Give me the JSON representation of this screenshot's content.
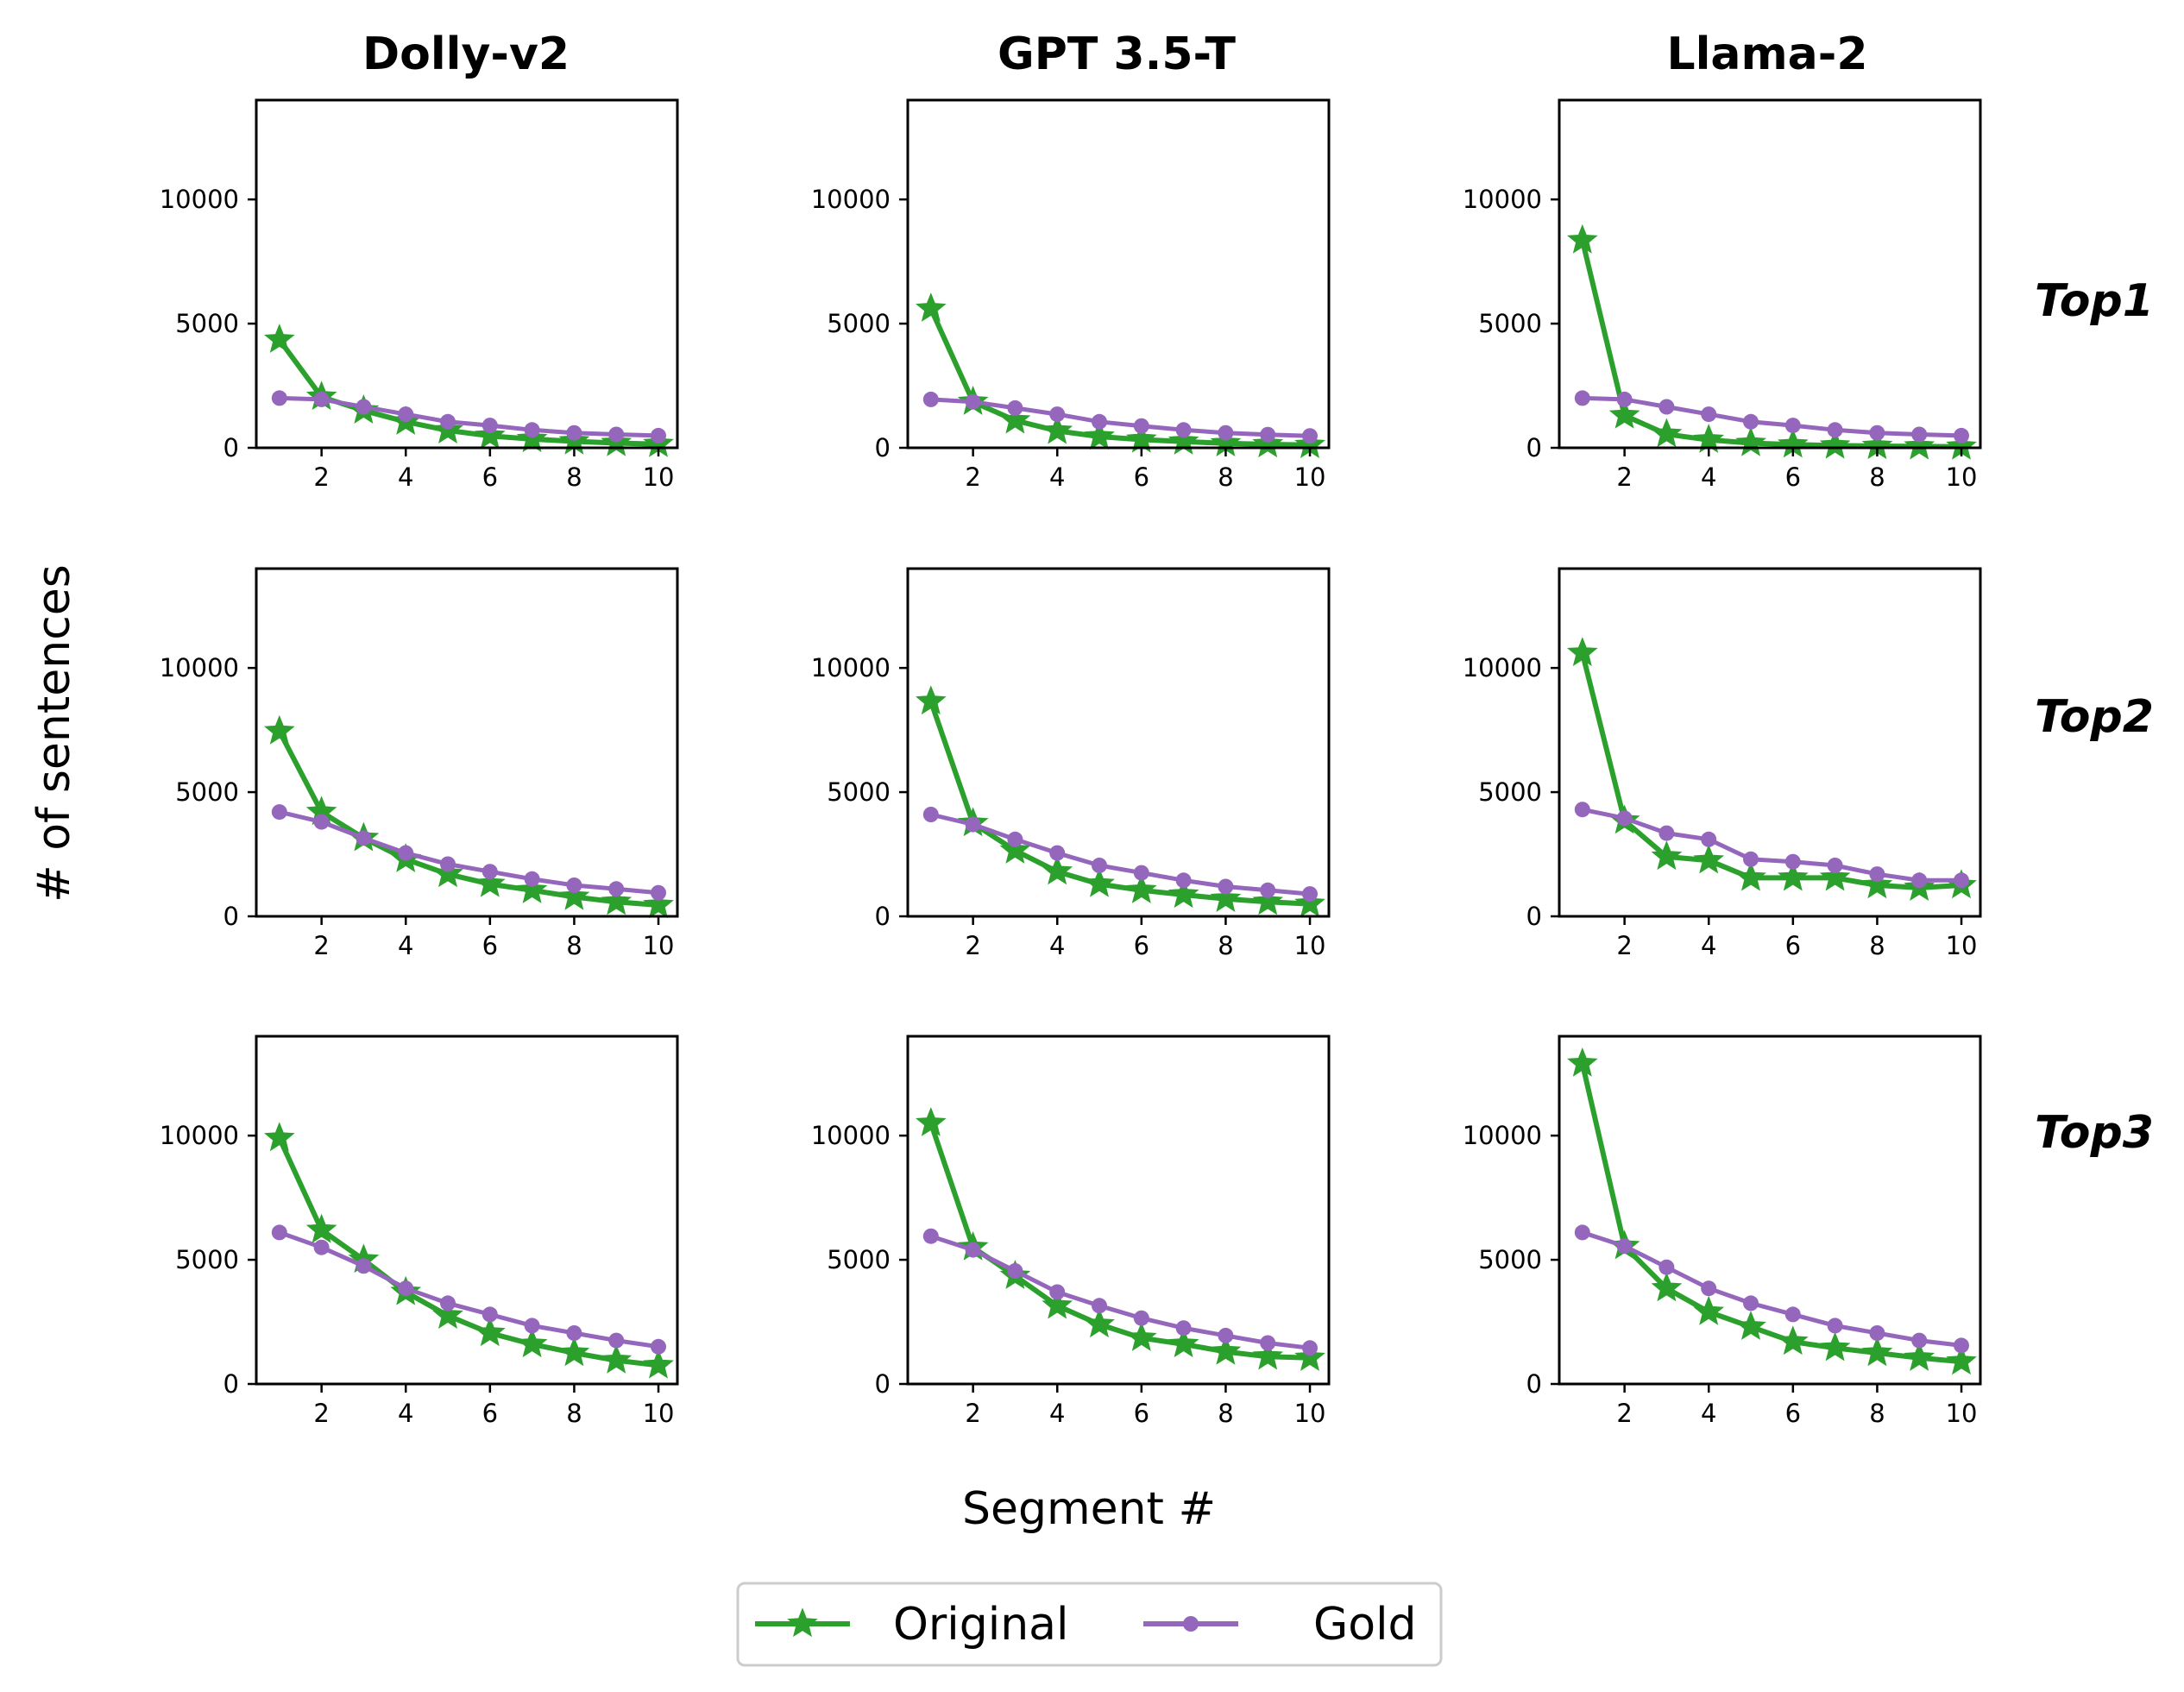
{
  "figure": {
    "xlabel": "Segment #",
    "ylabel": "# of sentences",
    "columns": [
      "Dolly-v2",
      "GPT 3.5-T",
      "Llama-2"
    ],
    "rows": [
      "Top1",
      "Top2",
      "Top3"
    ],
    "legend": {
      "placement": "bottom-center",
      "entries": [
        "Original",
        "Gold"
      ]
    },
    "colors": {
      "original": "#2ca02c",
      "gold": "#9467bd"
    }
  },
  "chart_data": {
    "type": "line",
    "layout": "3x3 grid",
    "x": [
      1,
      2,
      3,
      4,
      5,
      6,
      7,
      8,
      9,
      10
    ],
    "xlim": [
      0.45,
      10.45
    ],
    "ylim": [
      0,
      14000
    ],
    "xticks": [
      "2",
      "4",
      "6",
      "8",
      "10"
    ],
    "yticks": [
      "0",
      "5000",
      "10000"
    ],
    "grid": false,
    "panels": [
      {
        "row": "Top1",
        "column": "Dolly-v2",
        "series": [
          {
            "name": "Original",
            "values": [
              4350,
              2050,
              1500,
              1050,
              700,
              480,
              350,
              260,
              190,
              150
            ]
          },
          {
            "name": "Gold",
            "values": [
              2000,
              1950,
              1650,
              1350,
              1050,
              900,
              720,
              600,
              540,
              490
            ]
          }
        ]
      },
      {
        "row": "Top1",
        "column": "GPT 3.5-T",
        "series": [
          {
            "name": "Original",
            "values": [
              5600,
              1850,
              1100,
              680,
              450,
              330,
              250,
              180,
              140,
              110
            ]
          },
          {
            "name": "Gold",
            "values": [
              1950,
              1850,
              1600,
              1350,
              1050,
              880,
              720,
              600,
              530,
              480
            ]
          }
        ]
      },
      {
        "row": "Top1",
        "column": "Llama-2",
        "series": [
          {
            "name": "Original",
            "values": [
              8350,
              1300,
              550,
              320,
              190,
              130,
              90,
              70,
              55,
              45
            ]
          },
          {
            "name": "Gold",
            "values": [
              2000,
              1950,
              1650,
              1350,
              1050,
              900,
              720,
              600,
              540,
              490
            ]
          }
        ]
      },
      {
        "row": "Top2",
        "column": "Dolly-v2",
        "series": [
          {
            "name": "Original",
            "values": [
              7450,
              4200,
              3150,
              2300,
              1700,
              1300,
              1050,
              780,
              580,
              450
            ]
          },
          {
            "name": "Gold",
            "values": [
              4200,
              3800,
              3150,
              2550,
              2100,
              1800,
              1500,
              1250,
              1100,
              950
            ]
          }
        ]
      },
      {
        "row": "Top2",
        "column": "GPT 3.5-T",
        "series": [
          {
            "name": "Original",
            "values": [
              8650,
              3750,
              2650,
              1800,
              1300,
              1050,
              870,
              700,
              580,
              500
            ]
          },
          {
            "name": "Gold",
            "values": [
              4100,
              3700,
              3100,
              2550,
              2050,
              1750,
              1450,
              1200,
              1050,
              900
            ]
          }
        ]
      },
      {
        "row": "Top2",
        "column": "Llama-2",
        "series": [
          {
            "name": "Original",
            "values": [
              10600,
              3850,
              2400,
              2250,
              1550,
              1550,
              1550,
              1250,
              1150,
              1250
            ]
          },
          {
            "name": "Gold",
            "values": [
              4300,
              3950,
              3350,
              3100,
              2300,
              2200,
              2050,
              1700,
              1450,
              1450
            ]
          }
        ]
      },
      {
        "row": "Top3",
        "column": "Dolly-v2",
        "series": [
          {
            "name": "Original",
            "values": [
              9900,
              6200,
              5000,
              3700,
              2750,
              2050,
              1600,
              1250,
              950,
              750
            ]
          },
          {
            "name": "Gold",
            "values": [
              6100,
              5500,
              4750,
              3850,
              3250,
              2800,
              2350,
              2050,
              1750,
              1500
            ]
          }
        ]
      },
      {
        "row": "Top3",
        "column": "GPT 3.5-T",
        "series": [
          {
            "name": "Original",
            "values": [
              10500,
              5500,
              4350,
              3150,
              2400,
              1850,
              1600,
              1300,
              1100,
              1050
            ]
          },
          {
            "name": "Gold",
            "values": [
              5950,
              5400,
              4550,
              3700,
              3150,
              2650,
              2250,
              1950,
              1650,
              1450
            ]
          }
        ]
      },
      {
        "row": "Top3",
        "column": "Llama-2",
        "series": [
          {
            "name": "Original",
            "values": [
              12900,
              5550,
              3850,
              2900,
              2300,
              1700,
              1450,
              1250,
              1050,
              900
            ]
          },
          {
            "name": "Gold",
            "values": [
              6100,
              5550,
              4700,
              3850,
              3250,
              2800,
              2350,
              2050,
              1750,
              1550
            ]
          }
        ]
      }
    ]
  }
}
